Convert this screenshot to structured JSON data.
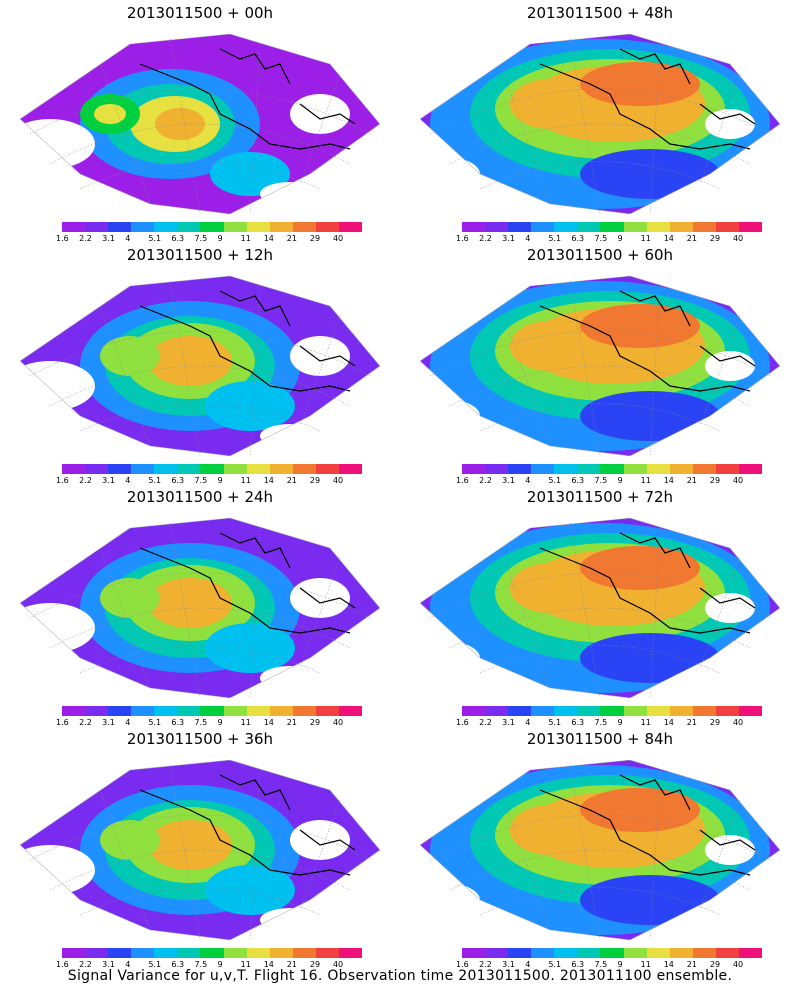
{
  "colorbar": {
    "labels": [
      "1.6",
      "2.2",
      "3.1",
      "4",
      "5.1",
      "6.3",
      "7.5",
      "9",
      "11",
      "14",
      "21",
      "29",
      "40"
    ],
    "colors": [
      "#9b1fe6",
      "#7a2bf0",
      "#2a44f5",
      "#1e90ff",
      "#00c0f0",
      "#00c8b4",
      "#00d040",
      "#90e040",
      "#e6e040",
      "#f0b030",
      "#f07830",
      "#f04040",
      "#f0107a"
    ]
  },
  "panels": [
    {
      "title": "2013011500 + 00h",
      "style": "low"
    },
    {
      "title": "2013011500 + 48h",
      "style": "high"
    },
    {
      "title": "2013011500 + 12h",
      "style": "mid"
    },
    {
      "title": "2013011500 + 60h",
      "style": "high"
    },
    {
      "title": "2013011500 + 24h",
      "style": "mid"
    },
    {
      "title": "2013011500 + 72h",
      "style": "high"
    },
    {
      "title": "2013011500 + 36h",
      "style": "mid"
    },
    {
      "title": "2013011500 + 84h",
      "style": "high"
    }
  ],
  "footer": "Signal Variance for u,v,T. Flight 16. Observation time 2013011500. 2013011100 ensemble."
}
